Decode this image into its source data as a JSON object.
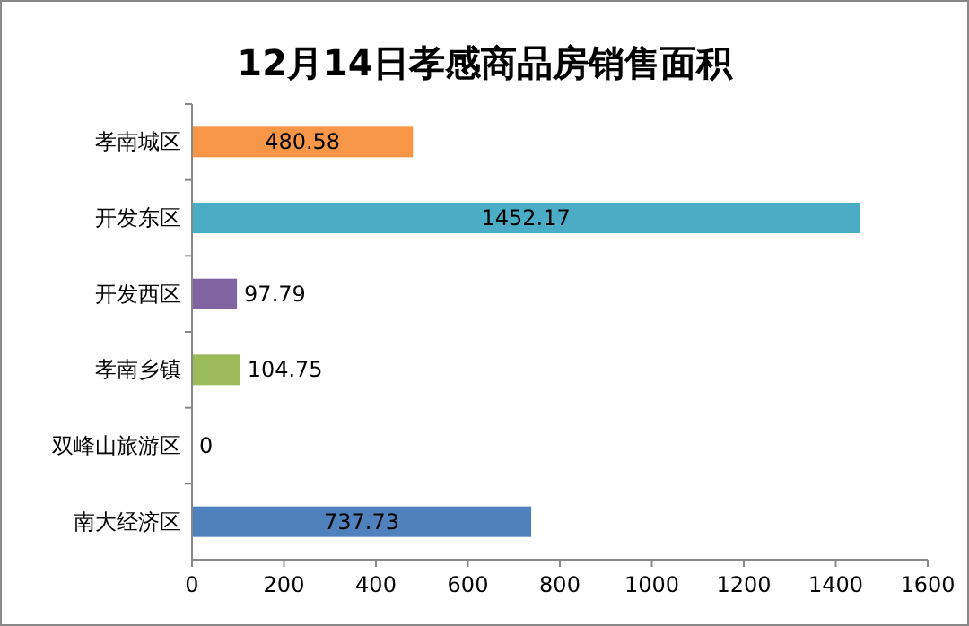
{
  "chart_data": {
    "type": "bar",
    "orientation": "horizontal",
    "title": "12月14日孝感商品房销售面积",
    "categories": [
      "孝南城区",
      "开发东区",
      "开发西区",
      "孝南乡镇",
      "双峰山旅游区",
      "南大经济区"
    ],
    "values": [
      480.58,
      1452.17,
      97.79,
      104.75,
      0,
      737.73
    ],
    "colors": [
      "#f79646",
      "#4bacc6",
      "#8064a2",
      "#9bbb59",
      "#4f81bd",
      "#4f81bd"
    ],
    "xlim": [
      0,
      1600
    ],
    "xticks": [
      0,
      200,
      400,
      600,
      800,
      1000,
      1200,
      1400,
      1600
    ],
    "data_labels": true
  }
}
